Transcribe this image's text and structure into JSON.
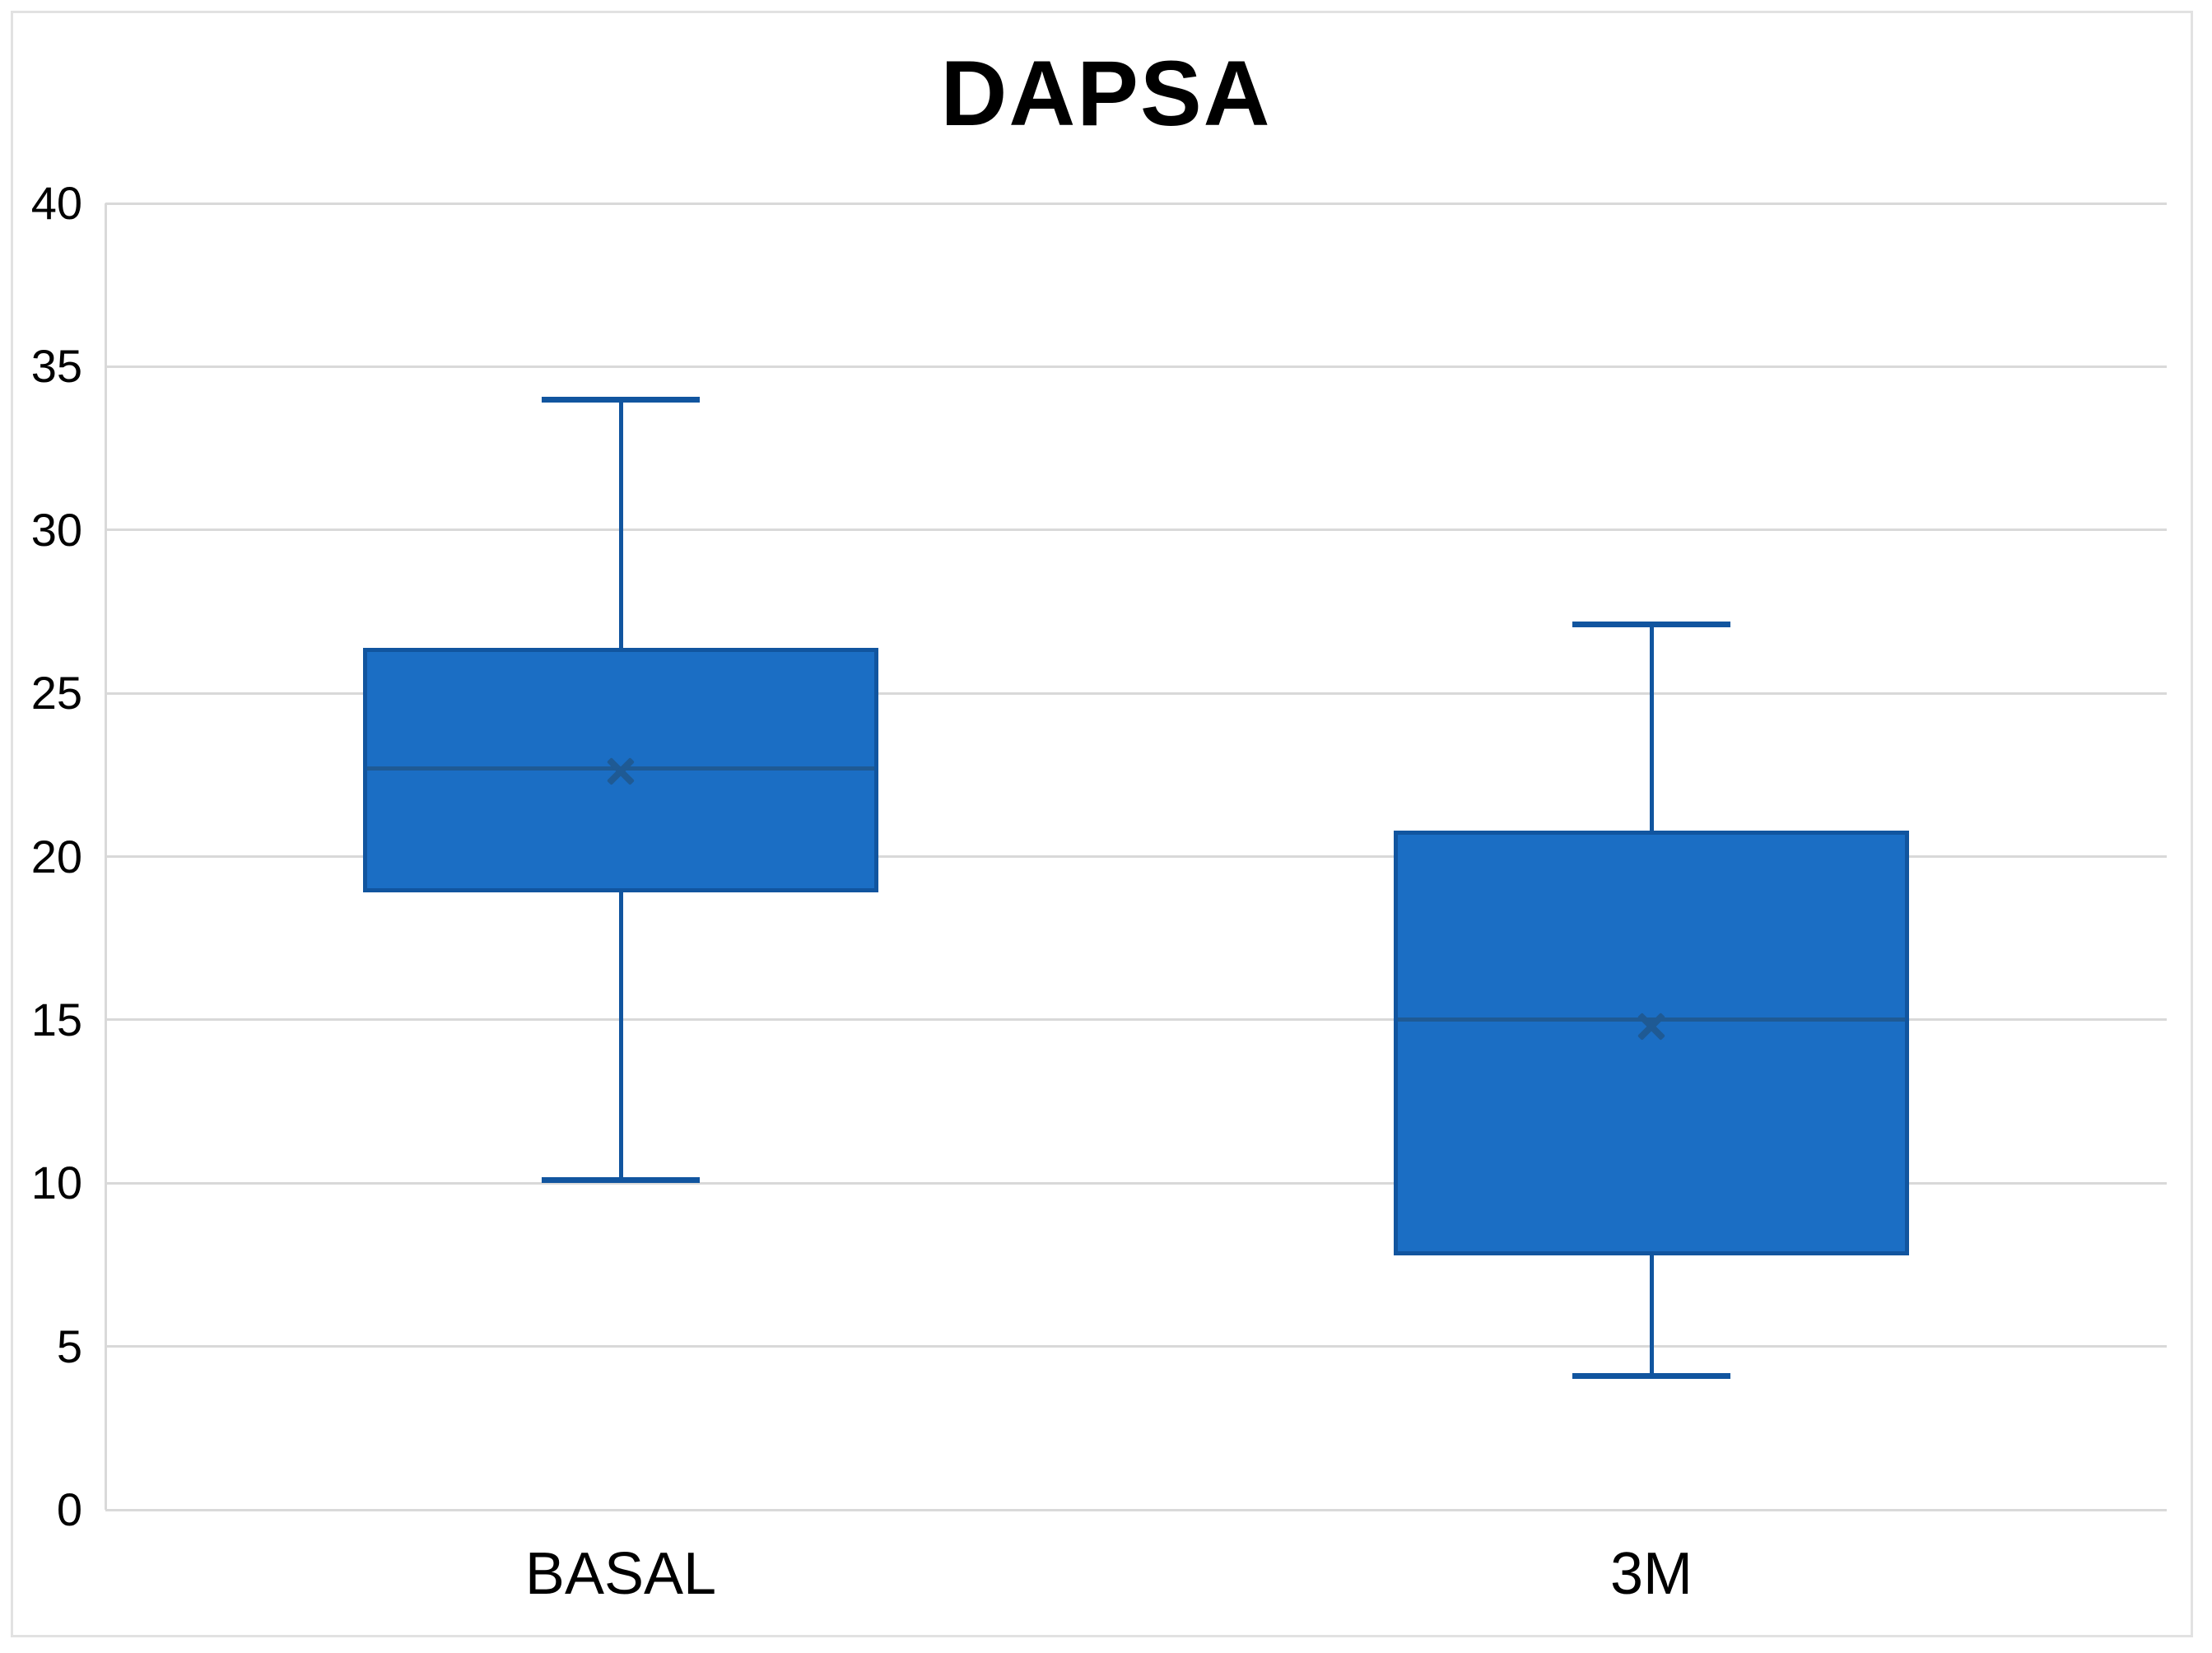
{
  "title": "DAPSA",
  "chart_data": {
    "type": "box",
    "title": "DAPSA",
    "categories": [
      "BASAL",
      "3M"
    ],
    "series": [
      {
        "name": "BASAL",
        "min": 10.1,
        "q1": 18.9,
        "median": 22.7,
        "mean": 22.6,
        "q3": 26.4,
        "max": 34.0
      },
      {
        "name": "3M",
        "min": 4.1,
        "q1": 7.8,
        "median": 15.0,
        "mean": 14.8,
        "q3": 20.8,
        "max": 27.1
      }
    ],
    "ylim": [
      0,
      40
    ],
    "yticks": [
      0,
      5,
      10,
      15,
      20,
      25,
      30,
      35,
      40
    ],
    "grid": "horizontal",
    "legend": "none",
    "colors": {
      "box_fill": "#1B6EC4",
      "box_border": "#11559F",
      "median_line": "#1F5A94",
      "mean_marker": "#1F5A94",
      "gridline": "#D9D9D9",
      "chart_border": "#E2E2E2",
      "text": "#000000"
    }
  }
}
